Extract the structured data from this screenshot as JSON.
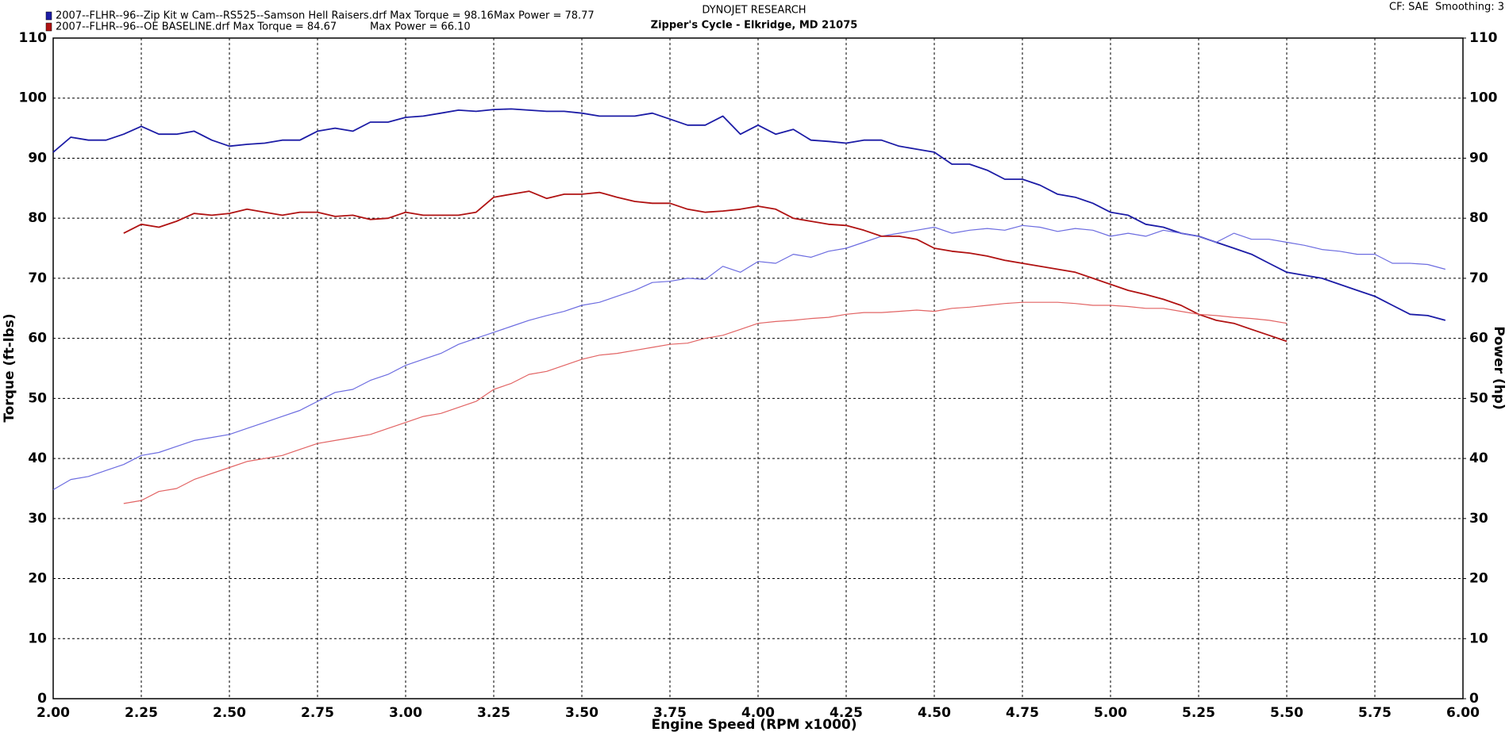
{
  "chart_data": {
    "type": "line",
    "title": "DYNOJET RESEARCH",
    "subtitle": "Zipper's Cycle - Elkridge, MD 21075",
    "settings_text": "CF: SAE  Smoothing: 3",
    "x_label": "Engine Speed (RPM x1000)",
    "y_label": "Torque (ft-lbs)",
    "y2_label": "Power (hp)",
    "grid": true,
    "xlim": [
      2,
      6
    ],
    "xticks": [
      {
        "value": 2,
        "label": "2.00"
      },
      {
        "value": 2.25,
        "label": "2.25"
      },
      {
        "value": 2.5,
        "label": "2.50"
      },
      {
        "value": 2.75,
        "label": "2.75"
      },
      {
        "value": 3,
        "label": "3.00"
      },
      {
        "value": 3.25,
        "label": "3.25"
      },
      {
        "value": 3.5,
        "label": "3.50"
      },
      {
        "value": 3.75,
        "label": "3.75"
      },
      {
        "value": 4,
        "label": "4.00"
      },
      {
        "value": 4.25,
        "label": "4.25"
      },
      {
        "value": 4.5,
        "label": "4.50"
      },
      {
        "value": 4.75,
        "label": "4.75"
      },
      {
        "value": 5,
        "label": "5.00"
      },
      {
        "value": 5.25,
        "label": "5.25"
      },
      {
        "value": 5.5,
        "label": "5.50"
      },
      {
        "value": 5.75,
        "label": "5.75"
      },
      {
        "value": 6,
        "label": "6.00"
      }
    ],
    "ylim": [
      0,
      110
    ],
    "yticks": [
      0,
      10,
      20,
      30,
      40,
      50,
      60,
      70,
      80,
      90,
      100,
      110
    ],
    "y2lim": [
      0,
      110
    ],
    "y2ticks": [
      0,
      10,
      20,
      30,
      40,
      50,
      60,
      70,
      80,
      90,
      100,
      110
    ],
    "x": [
      2.0,
      2.05,
      2.1,
      2.15,
      2.2,
      2.25,
      2.3,
      2.35,
      2.4,
      2.45,
      2.5,
      2.55,
      2.6,
      2.65,
      2.7,
      2.75,
      2.8,
      2.85,
      2.9,
      2.95,
      3.0,
      3.05,
      3.1,
      3.15,
      3.2,
      3.25,
      3.3,
      3.35,
      3.4,
      3.45,
      3.5,
      3.55,
      3.6,
      3.65,
      3.7,
      3.75,
      3.8,
      3.85,
      3.9,
      3.95,
      4.0,
      4.05,
      4.1,
      4.15,
      4.2,
      4.25,
      4.3,
      4.35,
      4.4,
      4.45,
      4.5,
      4.55,
      4.6,
      4.65,
      4.7,
      4.75,
      4.8,
      4.85,
      4.9,
      4.95,
      5.0,
      5.05,
      5.1,
      5.15,
      5.2,
      5.25,
      5.3,
      5.35,
      5.4,
      5.45,
      5.5,
      5.55,
      5.6,
      5.65,
      5.7,
      5.75,
      5.8,
      5.85,
      5.9,
      5.95
    ],
    "series": [
      {
        "name": "2007--FLHR--96--Zip Kit w Cam--RS525--Samson Hell Raisers.drf Max Torque = 98.16",
        "color": "#1c1ca6",
        "values": [
          91,
          93.5,
          93,
          93,
          94,
          95.3,
          94,
          94,
          94.5,
          93,
          92,
          92.3,
          92.5,
          93,
          93,
          94.5,
          95,
          94.5,
          96,
          96,
          96.8,
          97,
          97.5,
          98,
          97.8,
          98.1,
          98.2,
          98,
          97.8,
          97.8,
          97.5,
          97,
          97,
          97,
          97.5,
          96.5,
          95.5,
          95.5,
          97,
          94,
          95.5,
          94,
          94.8,
          93,
          92.8,
          92.5,
          93,
          93,
          92,
          91.5,
          91,
          89,
          89,
          88,
          86.5,
          86.5,
          85.5,
          84,
          83.5,
          82.5,
          81,
          80.5,
          79,
          78.5,
          77.5,
          77,
          76,
          75,
          74,
          72.5,
          71,
          70.5,
          70,
          69,
          68,
          67,
          65.5,
          64,
          63.8,
          63
        ]
      },
      {
        "name": "Max Power = 78.77",
        "color": "#6c6ce0",
        "axis": "y2",
        "values": [
          34.8,
          36.5,
          37,
          38,
          39,
          40.5,
          41,
          42,
          43,
          43.5,
          44,
          45,
          46,
          47,
          48,
          49.5,
          51,
          51.5,
          53,
          54,
          55.5,
          56.5,
          57.5,
          59,
          60,
          61,
          62,
          63,
          63.8,
          64.5,
          65.5,
          66,
          67,
          68,
          69.3,
          69.5,
          70,
          69.8,
          72,
          71,
          72.8,
          72.5,
          74,
          73.5,
          74.5,
          75,
          76,
          77,
          77.5,
          78,
          78.5,
          77.5,
          78,
          78.3,
          78,
          78.8,
          78.5,
          77.8,
          78.3,
          78,
          77,
          77.5,
          77,
          78,
          77.5,
          77,
          76,
          77.5,
          76.5,
          76.5,
          76,
          75.5,
          74.8,
          74.5,
          74,
          74,
          72.5,
          72.5,
          72.3,
          71.5
        ]
      },
      {
        "name": "2007--FLHR--96--OE BASELINE.drf Max Torque = 84.67",
        "color": "#b01212",
        "values": [
          null,
          null,
          null,
          null,
          77.5,
          79,
          78.5,
          79.5,
          80.8,
          80.5,
          80.8,
          81.5,
          81,
          80.5,
          81,
          81,
          80.3,
          80.5,
          79.8,
          80,
          81,
          80.5,
          80.5,
          80.5,
          81,
          83.5,
          84,
          84.5,
          83.3,
          84,
          84,
          84.3,
          83.5,
          82.8,
          82.5,
          82.5,
          81.5,
          81,
          81.2,
          81.5,
          82,
          81.5,
          80,
          79.5,
          79,
          78.8,
          78,
          77,
          77,
          76.5,
          75,
          74.5,
          74.2,
          73.7,
          73,
          72.5,
          72,
          71.5,
          71,
          70,
          69,
          68,
          67.3,
          66.5,
          65.5,
          64,
          63,
          62.5,
          61.5,
          60.5,
          59.5,
          null,
          null,
          null,
          null,
          null,
          null,
          null,
          null,
          null
        ]
      },
      {
        "name": "Max Power = 66.10",
        "color": "#e26464",
        "axis": "y2",
        "values": [
          null,
          null,
          null,
          null,
          32.5,
          33,
          34.5,
          35,
          36.5,
          37.5,
          38.5,
          39.5,
          40,
          40.5,
          41.5,
          42.5,
          43,
          43.5,
          44,
          45,
          46,
          47,
          47.5,
          48.5,
          49.5,
          51.5,
          52.5,
          54,
          54.5,
          55.5,
          56.5,
          57.2,
          57.5,
          58,
          58.5,
          59,
          59.2,
          60,
          60.5,
          61.5,
          62.5,
          62.8,
          63,
          63.3,
          63.5,
          64,
          64.3,
          64.3,
          64.5,
          64.7,
          64.5,
          65,
          65.2,
          65.5,
          65.8,
          66,
          66,
          66,
          65.8,
          65.5,
          65.5,
          65.3,
          65,
          65,
          64.5,
          64,
          63.8,
          63.5,
          63.3,
          63,
          62.5,
          null,
          null,
          null,
          null,
          null,
          null,
          null,
          null,
          null
        ]
      }
    ]
  }
}
